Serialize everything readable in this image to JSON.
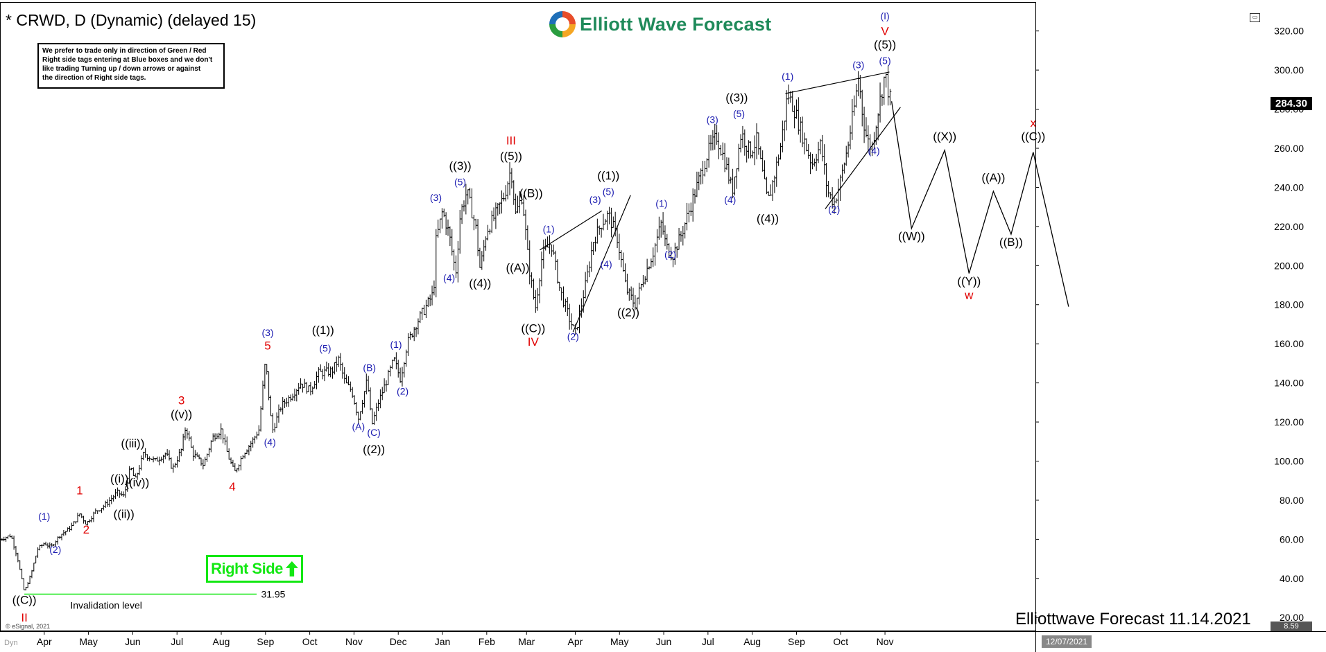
{
  "header": {
    "title": "* CRWD, D (Dynamic) (delayed 15)",
    "logo_text": "Elliott Wave Forecast"
  },
  "notice": {
    "lines": [
      "We prefer to trade only in direction of Green / Red",
      "Right side tags entering at Blue boxes and we don't",
      "like trading Turning up / down arrows or against",
      "the direction of Right side tags."
    ]
  },
  "right_side_tag": {
    "label": "Right Side",
    "icon": "arrow-up-icon",
    "color": "#13e813"
  },
  "invalidation": {
    "label": "Invalidation level",
    "value": 31.95,
    "value_text": "31.95",
    "color": "#13e813"
  },
  "footer": {
    "text": "Elliottwave Forecast 11.14.2021",
    "esignal": "© eSignal, 2021",
    "date_tag": "12/07/2021",
    "small_value": "8.59",
    "corner_label": "Dyn"
  },
  "colors": {
    "blue": "#1a1ab0",
    "red": "#e00000",
    "black": "#000000"
  },
  "chart_data": {
    "type": "ohlc",
    "title": "* CRWD, D (Dynamic) (delayed 15)",
    "last_price": 284.3,
    "last_price_text": "284.30",
    "y_ticks": [
      20,
      40,
      60,
      80,
      100,
      120,
      140,
      160,
      180,
      200,
      220,
      240,
      260,
      280,
      300,
      320
    ],
    "ylim": [
      13,
      333
    ],
    "x_ticks": [
      {
        "label": "Apr",
        "t": 3.2
      },
      {
        "label": "May",
        "t": 4.2
      },
      {
        "label": "Jun",
        "t": 5.2
      },
      {
        "label": "Jul",
        "t": 6.2
      },
      {
        "label": "Aug",
        "t": 7.2
      },
      {
        "label": "Sep",
        "t": 8.2
      },
      {
        "label": "Oct",
        "t": 9.2
      },
      {
        "label": "Nov",
        "t": 10.2
      },
      {
        "label": "Dec",
        "t": 11.2
      },
      {
        "label": "Jan",
        "t": 12.2
      },
      {
        "label": "Feb",
        "t": 13.2
      },
      {
        "label": "Mar",
        "t": 14.1
      },
      {
        "label": "Apr",
        "t": 15.2
      },
      {
        "label": "May",
        "t": 16.2
      },
      {
        "label": "Jun",
        "t": 17.2
      },
      {
        "label": "Jul",
        "t": 18.2
      },
      {
        "label": "Aug",
        "t": 19.2
      },
      {
        "label": "Sep",
        "t": 20.2
      },
      {
        "label": "Oct",
        "t": 21.2
      },
      {
        "label": "Nov",
        "t": 22.2
      }
    ],
    "xlim": [
      2.2,
      25.6
    ],
    "price_path": [
      [
        2.2,
        60
      ],
      [
        2.45,
        62
      ],
      [
        2.6,
        50
      ],
      [
        2.75,
        33
      ],
      [
        2.9,
        42
      ],
      [
        3.05,
        55
      ],
      [
        3.2,
        58
      ],
      [
        3.35,
        56
      ],
      [
        3.55,
        62
      ],
      [
        3.8,
        66
      ],
      [
        4.0,
        73
      ],
      [
        4.15,
        68
      ],
      [
        4.35,
        74
      ],
      [
        4.6,
        78
      ],
      [
        4.85,
        84
      ],
      [
        5.0,
        82
      ],
      [
        5.15,
        97
      ],
      [
        5.25,
        90
      ],
      [
        5.45,
        104
      ],
      [
        5.7,
        100
      ],
      [
        5.95,
        104
      ],
      [
        6.1,
        96
      ],
      [
        6.3,
        106
      ],
      [
        6.4,
        118
      ],
      [
        6.55,
        104
      ],
      [
        6.8,
        98
      ],
      [
        7.0,
        112
      ],
      [
        7.2,
        116
      ],
      [
        7.35,
        103
      ],
      [
        7.5,
        94
      ],
      [
        7.7,
        104
      ],
      [
        7.9,
        110
      ],
      [
        8.05,
        116
      ],
      [
        8.2,
        152
      ],
      [
        8.35,
        115
      ],
      [
        8.55,
        128
      ],
      [
        8.8,
        134
      ],
      [
        9.0,
        140
      ],
      [
        9.2,
        136
      ],
      [
        9.4,
        145
      ],
      [
        9.7,
        146
      ],
      [
        9.85,
        152
      ],
      [
        10.0,
        140
      ],
      [
        10.15,
        136
      ],
      [
        10.3,
        122
      ],
      [
        10.4,
        132
      ],
      [
        10.5,
        142
      ],
      [
        10.6,
        118
      ],
      [
        10.75,
        130
      ],
      [
        10.95,
        142
      ],
      [
        11.1,
        152
      ],
      [
        11.25,
        142
      ],
      [
        11.4,
        160
      ],
      [
        11.6,
        170
      ],
      [
        11.8,
        178
      ],
      [
        12.0,
        186
      ],
      [
        12.05,
        212
      ],
      [
        12.2,
        228
      ],
      [
        12.35,
        216
      ],
      [
        12.5,
        196
      ],
      [
        12.6,
        226
      ],
      [
        12.75,
        238
      ],
      [
        12.95,
        220
      ],
      [
        13.05,
        198
      ],
      [
        13.2,
        218
      ],
      [
        13.4,
        226
      ],
      [
        13.6,
        236
      ],
      [
        13.75,
        250
      ],
      [
        13.85,
        226
      ],
      [
        14.0,
        236
      ],
      [
        14.15,
        200
      ],
      [
        14.3,
        178
      ],
      [
        14.45,
        205
      ],
      [
        14.65,
        212
      ],
      [
        14.85,
        188
      ],
      [
        15.05,
        174
      ],
      [
        15.2,
        165
      ],
      [
        15.45,
        192
      ],
      [
        15.6,
        212
      ],
      [
        15.8,
        222
      ],
      [
        15.95,
        226
      ],
      [
        16.15,
        214
      ],
      [
        16.35,
        188
      ],
      [
        16.55,
        180
      ],
      [
        16.75,
        194
      ],
      [
        16.95,
        206
      ],
      [
        17.15,
        222
      ],
      [
        17.25,
        210
      ],
      [
        17.4,
        205
      ],
      [
        17.6,
        216
      ],
      [
        17.8,
        230
      ],
      [
        18.0,
        244
      ],
      [
        18.2,
        258
      ],
      [
        18.4,
        266
      ],
      [
        18.6,
        252
      ],
      [
        18.75,
        238
      ],
      [
        18.95,
        268
      ],
      [
        19.15,
        258
      ],
      [
        19.3,
        264
      ],
      [
        19.55,
        232
      ],
      [
        19.7,
        246
      ],
      [
        19.85,
        262
      ],
      [
        20.0,
        288
      ],
      [
        20.15,
        280
      ],
      [
        20.4,
        262
      ],
      [
        20.55,
        252
      ],
      [
        20.75,
        262
      ],
      [
        20.9,
        238
      ],
      [
        21.05,
        232
      ],
      [
        21.2,
        244
      ],
      [
        21.35,
        260
      ],
      [
        21.5,
        280
      ],
      [
        21.6,
        297
      ],
      [
        21.7,
        276
      ],
      [
        21.8,
        264
      ],
      [
        21.9,
        260
      ],
      [
        22.05,
        280
      ],
      [
        22.2,
        298
      ],
      [
        22.3,
        286
      ],
      [
        22.35,
        284.3
      ]
    ],
    "projection": [
      [
        22.35,
        284
      ],
      [
        22.8,
        219
      ],
      [
        23.55,
        259
      ],
      [
        24.1,
        196
      ],
      [
        24.65,
        238
      ],
      [
        25.05,
        216
      ],
      [
        25.55,
        258
      ],
      [
        26.35,
        179
      ]
    ],
    "trendlines": [
      [
        [
          14.4,
          208
        ],
        [
          15.8,
          228
        ]
      ],
      [
        [
          15.15,
          166
        ],
        [
          16.45,
          236
        ]
      ],
      [
        [
          19.95,
          288
        ],
        [
          22.3,
          299
        ]
      ],
      [
        [
          20.85,
          229
        ],
        [
          22.55,
          281
        ]
      ]
    ],
    "labels": [
      {
        "t": "((C))",
        "c": "black",
        "x": 2.75,
        "y": 27
      },
      {
        "t": "II",
        "c": "red",
        "x": 2.75,
        "y": 18
      },
      {
        "t": "(1)",
        "c": "blue",
        "x": 3.2,
        "y": 70
      },
      {
        "t": "(2)",
        "c": "blue",
        "x": 3.45,
        "y": 53
      },
      {
        "t": "1",
        "c": "red",
        "x": 4.0,
        "y": 83
      },
      {
        "t": "2",
        "c": "red",
        "x": 4.15,
        "y": 63
      },
      {
        "t": "((i))",
        "c": "black",
        "x": 4.9,
        "y": 89
      },
      {
        "t": "((ii))",
        "c": "black",
        "x": 5.0,
        "y": 71
      },
      {
        "t": "((iii))",
        "c": "black",
        "x": 5.2,
        "y": 107
      },
      {
        "t": "((iv))",
        "c": "black",
        "x": 5.3,
        "y": 87
      },
      {
        "t": "((v))",
        "c": "black",
        "x": 6.3,
        "y": 122
      },
      {
        "t": "3",
        "c": "red",
        "x": 6.3,
        "y": 129
      },
      {
        "t": "4",
        "c": "red",
        "x": 7.45,
        "y": 85
      },
      {
        "t": "(4)",
        "c": "blue",
        "x": 8.3,
        "y": 108
      },
      {
        "t": "5",
        "c": "red",
        "x": 8.25,
        "y": 157
      },
      {
        "t": "(3)",
        "c": "blue",
        "x": 8.25,
        "y": 164
      },
      {
        "t": "((1))",
        "c": "black",
        "x": 9.5,
        "y": 165
      },
      {
        "t": "(5)",
        "c": "blue",
        "x": 9.55,
        "y": 156
      },
      {
        "t": "(A)",
        "c": "blue",
        "x": 10.3,
        "y": 116
      },
      {
        "t": "(B)",
        "c": "blue",
        "x": 10.55,
        "y": 146
      },
      {
        "t": "(C)",
        "c": "blue",
        "x": 10.65,
        "y": 113
      },
      {
        "t": "((2))",
        "c": "black",
        "x": 10.65,
        "y": 104
      },
      {
        "t": "(1)",
        "c": "blue",
        "x": 11.15,
        "y": 158
      },
      {
        "t": "(2)",
        "c": "blue",
        "x": 11.3,
        "y": 134
      },
      {
        "t": "(3)",
        "c": "blue",
        "x": 12.05,
        "y": 233
      },
      {
        "t": "(4)",
        "c": "blue",
        "x": 12.35,
        "y": 192
      },
      {
        "t": "(5)",
        "c": "blue",
        "x": 12.6,
        "y": 241
      },
      {
        "t": "((3))",
        "c": "black",
        "x": 12.6,
        "y": 249
      },
      {
        "t": "((4))",
        "c": "black",
        "x": 13.05,
        "y": 189
      },
      {
        "t": "III",
        "c": "red",
        "x": 13.75,
        "y": 262
      },
      {
        "t": "((5))",
        "c": "black",
        "x": 13.75,
        "y": 254
      },
      {
        "t": "((B))",
        "c": "black",
        "x": 14.2,
        "y": 235
      },
      {
        "t": "((A))",
        "c": "black",
        "x": 13.9,
        "y": 197
      },
      {
        "t": "((C))",
        "c": "black",
        "x": 14.25,
        "y": 166
      },
      {
        "t": "IV",
        "c": "red",
        "x": 14.25,
        "y": 159
      },
      {
        "t": "(1)",
        "c": "blue",
        "x": 14.6,
        "y": 217
      },
      {
        "t": "(2)",
        "c": "blue",
        "x": 15.15,
        "y": 162
      },
      {
        "t": "(3)",
        "c": "blue",
        "x": 15.65,
        "y": 232
      },
      {
        "t": "(4)",
        "c": "blue",
        "x": 15.9,
        "y": 199
      },
      {
        "t": "(5)",
        "c": "blue",
        "x": 15.95,
        "y": 236
      },
      {
        "t": "((1))",
        "c": "black",
        "x": 15.95,
        "y": 244
      },
      {
        "t": "((2))",
        "c": "black",
        "x": 16.4,
        "y": 174
      },
      {
        "t": "(1)",
        "c": "blue",
        "x": 17.15,
        "y": 230
      },
      {
        "t": "(2)",
        "c": "blue",
        "x": 17.35,
        "y": 204
      },
      {
        "t": "(3)",
        "c": "blue",
        "x": 18.3,
        "y": 273
      },
      {
        "t": "(4)",
        "c": "blue",
        "x": 18.7,
        "y": 232
      },
      {
        "t": "(5)",
        "c": "blue",
        "x": 18.9,
        "y": 276
      },
      {
        "t": "((3))",
        "c": "black",
        "x": 18.85,
        "y": 284
      },
      {
        "t": "((4))",
        "c": "black",
        "x": 19.55,
        "y": 222
      },
      {
        "t": "(1)",
        "c": "blue",
        "x": 20.0,
        "y": 295
      },
      {
        "t": "(2)",
        "c": "blue",
        "x": 21.05,
        "y": 227
      },
      {
        "t": "(3)",
        "c": "blue",
        "x": 21.6,
        "y": 301
      },
      {
        "t": "(4)",
        "c": "blue",
        "x": 21.95,
        "y": 257
      },
      {
        "t": "(5)",
        "c": "blue",
        "x": 22.2,
        "y": 303
      },
      {
        "t": "((5))",
        "c": "black",
        "x": 22.2,
        "y": 311
      },
      {
        "t": "V",
        "c": "red",
        "x": 22.2,
        "y": 318
      },
      {
        "t": "(I)",
        "c": "blue",
        "x": 22.2,
        "y": 326
      },
      {
        "t": "((W))",
        "c": "black",
        "x": 22.8,
        "y": 213
      },
      {
        "t": "((X))",
        "c": "black",
        "x": 23.55,
        "y": 264
      },
      {
        "t": "((Y))",
        "c": "black",
        "x": 24.1,
        "y": 190
      },
      {
        "t": "w",
        "c": "red",
        "x": 24.1,
        "y": 183
      },
      {
        "t": "((A))",
        "c": "black",
        "x": 24.65,
        "y": 243
      },
      {
        "t": "((B))",
        "c": "black",
        "x": 25.05,
        "y": 210
      },
      {
        "t": "((C))",
        "c": "black",
        "x": 25.55,
        "y": 264
      },
      {
        "t": "x",
        "c": "red",
        "x": 25.55,
        "y": 271
      }
    ]
  }
}
